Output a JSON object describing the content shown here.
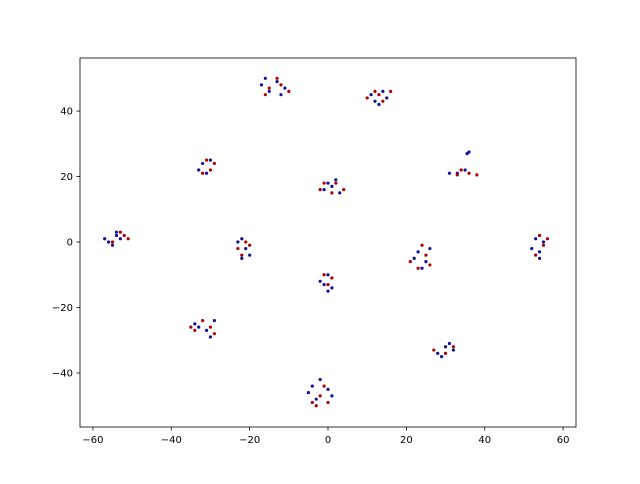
{
  "chart_data": {
    "type": "scatter",
    "xlim": [
      -63.3,
      63.3
    ],
    "ylim": [
      -56.5,
      56.2
    ],
    "xticks": [
      {
        "value": -60,
        "label": "−60"
      },
      {
        "value": -40,
        "label": "−40"
      },
      {
        "value": -20,
        "label": "−20"
      },
      0,
      20,
      40,
      60
    ],
    "yticks": [
      {
        "value": -40,
        "label": "−40"
      },
      {
        "value": -20,
        "label": "−20"
      },
      0,
      20,
      40
    ],
    "grid": false,
    "series": [
      {
        "color": "#10109a",
        "x": [
          -16,
          -13,
          -11,
          -15,
          -12,
          -17,
          11,
          14,
          12,
          15,
          13,
          -32,
          -30,
          -33,
          -31,
          36,
          35.5,
          33,
          31,
          35,
          0,
          2,
          -1,
          3,
          1,
          -56,
          -54,
          -55,
          -53,
          -57,
          -54,
          -22,
          -21,
          -23,
          -20,
          -22,
          23,
          25,
          24,
          26,
          22,
          53,
          54,
          55,
          52,
          54,
          0,
          -1,
          1,
          -2,
          0,
          -34,
          -31,
          -29,
          -33,
          -30,
          28,
          30,
          32,
          31,
          29,
          -4,
          -2,
          0,
          -5,
          1,
          -3
        ],
        "y": [
          50,
          49,
          47,
          46,
          45,
          48,
          45,
          46,
          43,
          44,
          42,
          24,
          25,
          22,
          21,
          27.5,
          27,
          21,
          21,
          22,
          18,
          19,
          16,
          15,
          17,
          0,
          2,
          -1,
          1,
          1,
          3,
          1,
          -2,
          0,
          -4,
          -5,
          -3,
          -6,
          -8,
          -2,
          -5,
          1,
          -3,
          0,
          -2,
          -5,
          -10,
          -13,
          -14,
          -12,
          -15,
          -25,
          -27,
          -24,
          -26,
          -29,
          -34,
          -32,
          -33,
          -31,
          -35,
          -44,
          -42,
          -45,
          -46,
          -47,
          -48
        ]
      },
      {
        "color": "#b00000",
        "x": [
          -15,
          -13,
          -12,
          -16,
          -10,
          12,
          10,
          14,
          16,
          13,
          -30,
          -32,
          -29,
          -31,
          33,
          36,
          38,
          34,
          -1,
          1,
          4,
          2,
          -2,
          -52,
          -53,
          -51,
          -55,
          -21,
          -23,
          -20,
          -22,
          24,
          21,
          25,
          26,
          23,
          55,
          53,
          56,
          54,
          1,
          -1,
          0,
          -35,
          -32,
          -30,
          -29,
          -34,
          27,
          30,
          32,
          -2,
          -4,
          0,
          -1,
          -3
        ],
        "y": [
          47,
          50,
          48,
          45,
          46,
          46,
          44,
          43,
          46,
          45,
          22,
          21,
          24,
          25,
          20.5,
          21,
          20.5,
          22,
          18,
          15,
          16,
          18,
          16,
          2,
          3,
          1,
          0,
          0,
          -2,
          -1,
          -4,
          -1,
          -6,
          -4,
          -7,
          -8,
          -1,
          -4,
          1,
          2,
          -11,
          -10,
          -13,
          -26,
          -24,
          -26,
          -28,
          -27,
          -33,
          -34,
          -32,
          -47,
          -49,
          -49,
          -44,
          -50
        ]
      }
    ]
  }
}
